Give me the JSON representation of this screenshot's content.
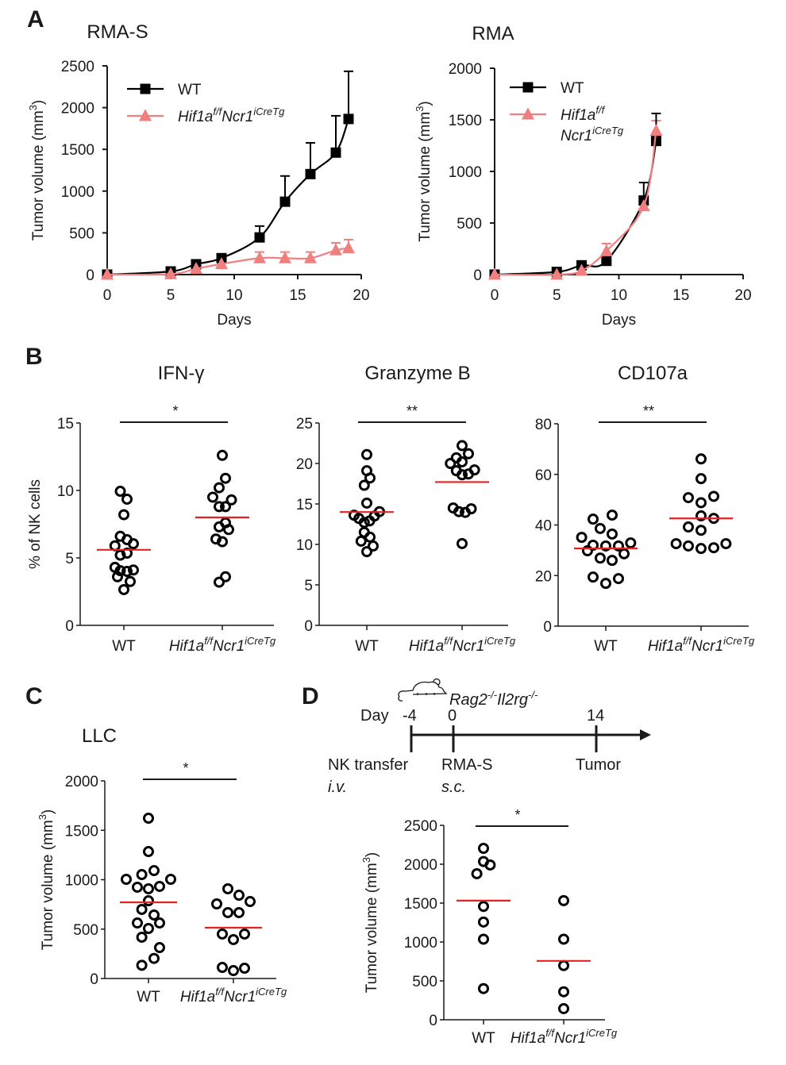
{
  "figure": {
    "colors": {
      "wt": "#000000",
      "ko": "#f08080",
      "mean_line": "#e32222",
      "axis": "#1a1a1a"
    },
    "genotype_label": {
      "main": "Hif1a",
      "sup1": "f/f",
      "main2": "Ncr1",
      "sup2": "iCreTg"
    },
    "panel_letters": [
      "A",
      "B",
      "C",
      "D"
    ]
  },
  "chart_data": [
    {
      "id": "A1",
      "panel": "A",
      "type": "line",
      "title": "RMA-S",
      "xlabel": "Days",
      "ylabel": "Tumor volume (mm3)",
      "xlim": [
        0,
        20
      ],
      "ylim": [
        0,
        2500
      ],
      "xticks": [
        0,
        5,
        10,
        15,
        20
      ],
      "yticks": [
        0,
        500,
        1000,
        1500,
        2000,
        2500
      ],
      "legend": "top-left",
      "series": [
        {
          "name": "WT",
          "marker": "square",
          "x": [
            0,
            5,
            7,
            9,
            12,
            14,
            16,
            18,
            19
          ],
          "y": [
            0,
            38,
            124,
            197,
            445,
            873,
            1204,
            1461,
            1864
          ],
          "err_top": [
            0,
            0,
            0,
            0,
            581,
            1181,
            1578,
            1902,
            2435
          ]
        },
        {
          "name": "Hif1af/fNcr1iCreTg",
          "marker": "triangle",
          "x": [
            0,
            5,
            7,
            9,
            12,
            14,
            16,
            18,
            19
          ],
          "y": [
            0,
            6,
            70,
            127,
            197,
            197,
            197,
            292,
            317
          ],
          "err_top": [
            0,
            0,
            0,
            0,
            270,
            270,
            270,
            381,
            419
          ]
        }
      ]
    },
    {
      "id": "A2",
      "panel": "A",
      "type": "line",
      "title": "RMA",
      "xlabel": "Days",
      "ylabel": "Tumor volume (mm3)",
      "xlim": [
        0,
        20
      ],
      "ylim": [
        0,
        2000
      ],
      "xticks": [
        0,
        5,
        10,
        15,
        20
      ],
      "yticks": [
        0,
        500,
        1000,
        1500,
        2000
      ],
      "legend": "top-left",
      "series": [
        {
          "name": "WT",
          "marker": "square",
          "x": [
            0,
            5,
            7,
            9,
            12,
            13
          ],
          "y": [
            0,
            26,
            90,
            133,
            718,
            1295
          ],
          "err_top": [
            0,
            0,
            0,
            0,
            892,
            1562
          ]
        },
        {
          "name": "Hif1af/fNcr1iCreTg",
          "marker": "triangle",
          "x": [
            0,
            5,
            7,
            9,
            12,
            13
          ],
          "y": [
            0,
            0,
            38,
            228,
            664,
            1395
          ],
          "err_top": [
            0,
            0,
            0,
            300,
            0,
            1492
          ]
        }
      ]
    },
    {
      "id": "B1",
      "panel": "B",
      "type": "scatter",
      "title": "IFN-γ",
      "ylabel": "% of NK cells",
      "ylim": [
        0,
        15
      ],
      "yticks": [
        0,
        5,
        10,
        15
      ],
      "categories": [
        "WT",
        "Hif1af/fNcr1iCreTg"
      ],
      "significance": "*",
      "groups": [
        {
          "name": "WT",
          "mean": 5.6,
          "points": [
            [
              -0.28,
              9.94
            ],
            [
              0.25,
              9.35
            ],
            [
              0,
              8.2
            ],
            [
              -0.28,
              6.6
            ],
            [
              0.25,
              6.35
            ],
            [
              -0.7,
              5.9
            ],
            [
              0.75,
              6.05
            ],
            [
              -0.28,
              5.2
            ],
            [
              0.25,
              5.35
            ],
            [
              -0.7,
              4.3
            ],
            [
              -0.28,
              4.05
            ],
            [
              0.25,
              4.0
            ],
            [
              0.75,
              4.1
            ],
            [
              -0.5,
              3.6
            ],
            [
              0.5,
              3.25
            ],
            [
              0,
              2.65
            ]
          ]
        },
        {
          "name": "Hif1af/fNcr1iCreTg",
          "mean": 8.0,
          "points": [
            [
              0,
              12.6
            ],
            [
              0.25,
              10.9
            ],
            [
              -0.25,
              10.2
            ],
            [
              -0.75,
              9.5
            ],
            [
              0.72,
              9.3
            ],
            [
              -0.25,
              8.8
            ],
            [
              0.25,
              8.8
            ],
            [
              -0.25,
              7.3
            ],
            [
              0.25,
              7.6
            ],
            [
              0.5,
              7.1
            ],
            [
              -0.5,
              6.4
            ],
            [
              0,
              6.2
            ],
            [
              0.25,
              3.6
            ],
            [
              -0.25,
              3.2
            ]
          ]
        }
      ]
    },
    {
      "id": "B2",
      "panel": "B",
      "type": "scatter",
      "title": "Granzyme B",
      "ylabel": "",
      "ylim": [
        0,
        25
      ],
      "yticks": [
        0,
        5,
        10,
        15,
        20,
        25
      ],
      "categories": [
        "WT",
        "Hif1af/fNcr1iCreTg"
      ],
      "significance": "**",
      "groups": [
        {
          "name": "WT",
          "mean": 14.0,
          "points": [
            [
              0,
              21.1
            ],
            [
              0,
              19.1
            ],
            [
              0.25,
              18.2
            ],
            [
              -0.2,
              17.3
            ],
            [
              0,
              15.1
            ],
            [
              -1.0,
              13.6
            ],
            [
              1.0,
              14.05
            ],
            [
              -0.62,
              13.2
            ],
            [
              0.6,
              13.5
            ],
            [
              -0.2,
              12.7
            ],
            [
              0.22,
              12.9
            ],
            [
              -0.2,
              11.5
            ],
            [
              -0.45,
              10.4
            ],
            [
              0.25,
              10.9
            ],
            [
              0.5,
              9.8
            ],
            [
              0,
              9.1
            ]
          ]
        },
        {
          "name": "Hif1af/fNcr1iCreTg",
          "mean": 17.7,
          "points": [
            [
              0,
              22.2
            ],
            [
              0.5,
              21.2
            ],
            [
              -0.45,
              20.7
            ],
            [
              0,
              20.2
            ],
            [
              -0.92,
              20.0
            ],
            [
              -0.45,
              19.1
            ],
            [
              0,
              18.6
            ],
            [
              0.5,
              18.7
            ],
            [
              0.98,
              19.2
            ],
            [
              -0.7,
              14.5
            ],
            [
              -0.25,
              14.05
            ],
            [
              0.25,
              13.95
            ],
            [
              0.72,
              14.4
            ],
            [
              0,
              10.1
            ]
          ]
        }
      ]
    },
    {
      "id": "B3",
      "panel": "B",
      "type": "scatter",
      "title": "CD107a",
      "ylabel": "",
      "ylim": [
        0,
        80
      ],
      "yticks": [
        0,
        20,
        40,
        60,
        80
      ],
      "categories": [
        "WT",
        "Hif1af/fNcr1iCreTg"
      ],
      "significance": "**",
      "groups": [
        {
          "name": "WT",
          "mean": 30.7,
          "points": [
            [
              0.25,
              43.9
            ],
            [
              -0.5,
              42.3
            ],
            [
              -0.22,
              38.6
            ],
            [
              0.25,
              36.4
            ],
            [
              -0.95,
              35.1
            ],
            [
              0.98,
              32.9
            ],
            [
              -0.5,
              32.0
            ],
            [
              0,
              31.7
            ],
            [
              0.5,
              31.7
            ],
            [
              -0.72,
              29.8
            ],
            [
              0.72,
              28.6
            ],
            [
              -0.22,
              26.9
            ],
            [
              0.25,
              26.0
            ],
            [
              -0.5,
              19.4
            ],
            [
              0.5,
              18.8
            ],
            [
              0,
              16.9
            ]
          ]
        },
        {
          "name": "Hif1af/fNcr1iCreTg",
          "mean": 42.6,
          "points": [
            [
              0,
              66.1
            ],
            [
              0,
              58.3
            ],
            [
              -0.5,
              50.8
            ],
            [
              0.5,
              51.3
            ],
            [
              0,
              48.8
            ],
            [
              0,
              43.6
            ],
            [
              0.5,
              42.6
            ],
            [
              -0.5,
              39.2
            ],
            [
              0,
              37.9
            ],
            [
              -0.98,
              32.6
            ],
            [
              0.98,
              32.6
            ],
            [
              -0.5,
              31.7
            ],
            [
              0,
              30.7
            ],
            [
              0.5,
              31.0
            ]
          ]
        }
      ]
    },
    {
      "id": "C",
      "panel": "C",
      "type": "scatter",
      "title": "LLC",
      "ylabel": "Tumor volume (mm3)",
      "ylim": [
        0,
        2000
      ],
      "yticks": [
        0,
        500,
        1000,
        1500,
        2000
      ],
      "categories": [
        "WT",
        "Hif1af/fNcr1iCreTg"
      ],
      "significance": "*",
      "groups": [
        {
          "name": "WT",
          "mean": 771,
          "points": [
            [
              0,
              1622
            ],
            [
              0,
              1285
            ],
            [
              0.25,
              1092
            ],
            [
              -0.3,
              1052
            ],
            [
              -1.0,
              1004
            ],
            [
              1.0,
              1004
            ],
            [
              -0.5,
              924
            ],
            [
              0,
              908
            ],
            [
              0.5,
              932
            ],
            [
              0,
              787
            ],
            [
              -0.3,
              699
            ],
            [
              0.25,
              643
            ],
            [
              -0.5,
              562
            ],
            [
              0.5,
              562
            ],
            [
              0,
              506
            ],
            [
              -0.3,
              418
            ],
            [
              0.5,
              313
            ],
            [
              0.25,
              203
            ],
            [
              -0.3,
              134
            ]
          ]
        },
        {
          "name": "Hif1af/fNcr1iCreTg",
          "mean": 514,
          "points": [
            [
              -0.25,
              908
            ],
            [
              0.25,
              843
            ],
            [
              0.75,
              779
            ],
            [
              -0.75,
              755
            ],
            [
              -0.25,
              667
            ],
            [
              0.25,
              667
            ],
            [
              -0.5,
              450
            ],
            [
              0.5,
              450
            ],
            [
              0,
              394
            ],
            [
              -0.5,
              112
            ],
            [
              0,
              80
            ],
            [
              0.5,
              104
            ]
          ]
        }
      ]
    },
    {
      "id": "D",
      "panel": "D",
      "type": "scatter",
      "title": "",
      "ylabel": "Tumor volume (mm3)",
      "ylim": [
        0,
        2500
      ],
      "yticks": [
        0,
        500,
        1000,
        1500,
        2000,
        2500
      ],
      "categories": [
        "WT",
        "Hif1af/fNcr1iCreTg"
      ],
      "significance": "*",
      "groups": [
        {
          "name": "WT",
          "mean": 1532,
          "points": [
            [
              0,
              2204
            ],
            [
              0,
              2035
            ],
            [
              0.6,
              1990
            ],
            [
              -0.6,
              1878
            ],
            [
              0,
              1457
            ],
            [
              0,
              1257
            ],
            [
              0,
              1036
            ],
            [
              0,
              401
            ]
          ]
        },
        {
          "name": "Hif1af/fNcr1iCreTg",
          "mean": 757,
          "points": [
            [
              0,
              1532
            ],
            [
              0,
              1036
            ],
            [
              0,
              697
            ],
            [
              0,
              360
            ],
            [
              0,
              143
            ]
          ]
        }
      ]
    }
  ],
  "timeline": {
    "mouse_label": {
      "main1": "Rag2",
      "sup1": "-/-",
      "main2": "Il2rg",
      "sup2": "-/-"
    },
    "day_label": "Day",
    "points": [
      {
        "day": "-4",
        "label": "NK transfer",
        "sub": "i.v."
      },
      {
        "day": "0",
        "label": "RMA-S",
        "sub": "s.c."
      },
      {
        "day": "14",
        "label": "Tumor",
        "sub": ""
      }
    ]
  }
}
